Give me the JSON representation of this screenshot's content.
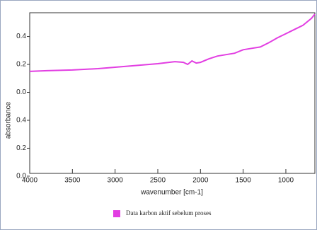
{
  "chart_data": {
    "type": "line",
    "x_label": "wavenumber [cm-1]",
    "y_label": "absorbance",
    "x": [
      4000,
      3800,
      3500,
      3200,
      3000,
      2700,
      2500,
      2300,
      2200,
      2150,
      2100,
      2050,
      2000,
      1900,
      1800,
      1700,
      1600,
      1500,
      1400,
      1300,
      1200,
      1100,
      1000,
      900,
      800,
      700,
      660
    ],
    "series": [
      {
        "name": "Data karbon aktif sebelum proses",
        "color": "#e23ee2",
        "values": [
          0.15,
          0.155,
          0.16,
          0.17,
          0.18,
          0.195,
          0.205,
          0.22,
          0.215,
          0.2,
          0.225,
          0.21,
          0.215,
          0.24,
          0.26,
          0.27,
          0.28,
          0.305,
          0.315,
          0.325,
          0.355,
          0.39,
          0.42,
          0.45,
          0.48,
          0.53,
          0.56
        ]
      }
    ],
    "xlim": [
      4000,
      660
    ],
    "xticks": [
      4000,
      3500,
      3000,
      2500,
      2000,
      1500,
      1000
    ],
    "ylim": [
      -0.58,
      0.57
    ],
    "yticks": [
      0.4,
      0.2,
      {
        "value": 0.0,
        "label": "0.0"
      },
      {
        "value": -0.2,
        "label": "0.4"
      },
      {
        "value": -0.4,
        "label": "0.2"
      },
      {
        "value": -0.6,
        "label": "0.0"
      }
    ],
    "legend": "bottom"
  }
}
